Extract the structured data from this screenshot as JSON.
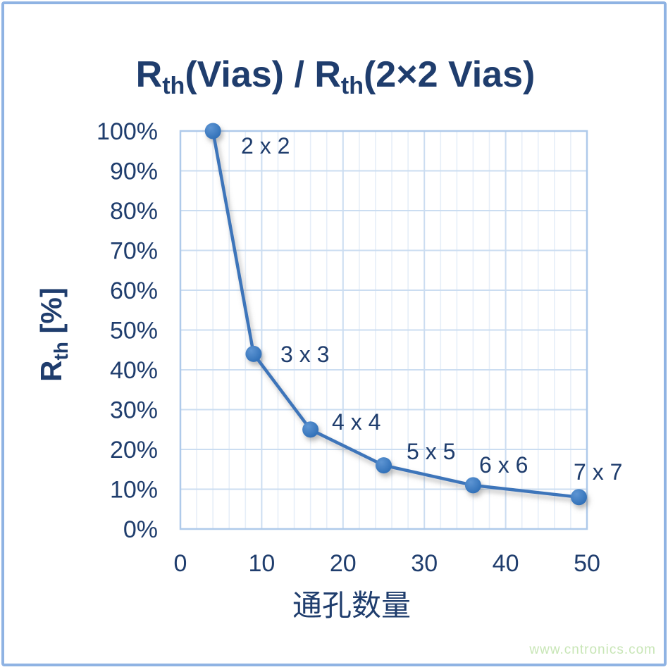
{
  "title": {
    "parts": [
      {
        "text": "R"
      },
      {
        "sub": "th"
      },
      {
        "text": "(Vias) / R"
      },
      {
        "sub": "th"
      },
      {
        "text": "(2×2 Vias)"
      }
    ]
  },
  "y_axis_title": {
    "parts": [
      {
        "text": "R"
      },
      {
        "sub": "th"
      },
      {
        "text": " [%]"
      }
    ]
  },
  "watermark": "www.cntronics.com",
  "colors": {
    "text_navy": "#1F3D6D",
    "line_blue": "#3E74BA",
    "marker_fill": "#2F6FB7",
    "marker_highlight": "#5E95D3",
    "grid_minor": "#E6EEF8",
    "grid_major": "#CBDDF1",
    "plot_border": "#AFCAEA",
    "frame_border": "#8FB3E3",
    "watermark_green": "#C8E6B6",
    "background": "#FFFFFF"
  },
  "chart_data": {
    "type": "line",
    "title": "Rth(Vias) / Rth(2×2 Vias)",
    "xlabel": "通孔数量",
    "ylabel": "Rth [%]",
    "xlim": [
      0,
      50
    ],
    "ylim": [
      0,
      100
    ],
    "x_major_ticks": [
      0,
      10,
      20,
      30,
      40,
      50
    ],
    "x_minor_step": 2,
    "y_major_step": 10,
    "y_tick_suffix": "%",
    "grid": "both",
    "legend": "none",
    "series": [
      {
        "name": "Rth(Vias)/Rth(2x2 Vias)",
        "x": [
          4,
          9,
          16,
          25,
          36,
          49
        ],
        "y": [
          100,
          44,
          25,
          16,
          11,
          8
        ],
        "point_labels": [
          "2 x 2",
          "3 x 3",
          "4 x 4",
          "5 x 5",
          "6 x 6",
          "7 x 7"
        ]
      }
    ]
  }
}
